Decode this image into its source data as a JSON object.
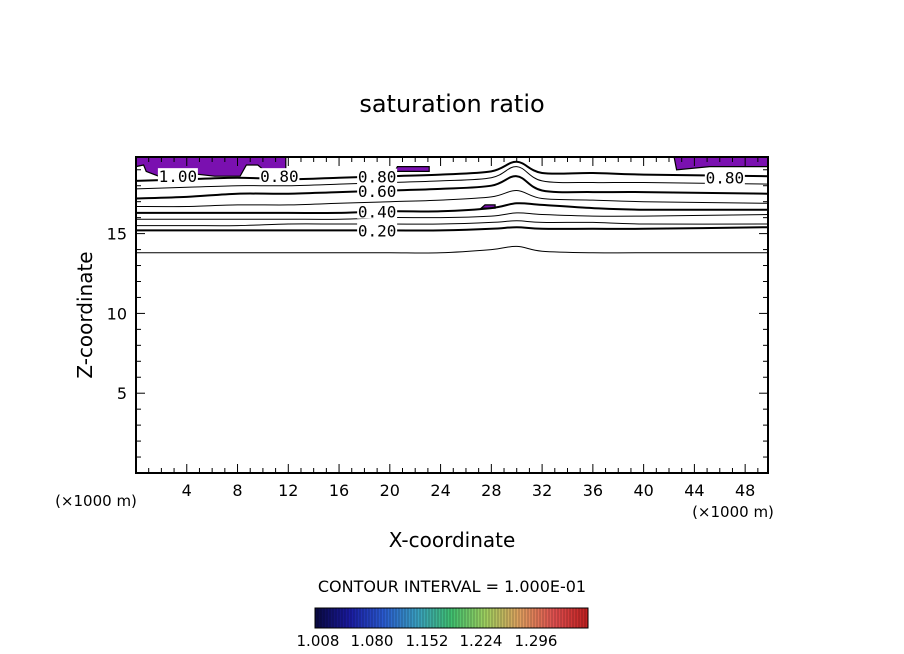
{
  "chart_data": {
    "type": "contour",
    "title": "saturation ratio",
    "xlabel": "X-coordinate",
    "ylabel": "Z-coordinate",
    "x_unit_left": "(×1000 m)",
    "x_unit_right": "(×1000 m)",
    "xlim": [
      0,
      49.8
    ],
    "ylim": [
      0,
      19.8
    ],
    "x_ticks": [
      4,
      8,
      12,
      16,
      20,
      24,
      28,
      32,
      36,
      40,
      44,
      48
    ],
    "y_ticks": [
      5,
      10,
      15
    ],
    "contour_interval_text": "CONTOUR INTERVAL = 1.000E-01",
    "colorbar_ticks": [
      "1.008",
      "1.080",
      "1.152",
      "1.224",
      "1.296"
    ],
    "colorbar_colors": [
      "#0a0a40",
      "#1a1aa0",
      "#2a5ad0",
      "#3aa0c0",
      "#40c070",
      "#a0d060",
      "#e0a060",
      "#e05050",
      "#c02020"
    ],
    "fill_color": "#7a10b0",
    "levels": [
      {
        "label": "0.20",
        "z": [
          15.2,
          15.2,
          15.2,
          15.2,
          15.2,
          15.2,
          15.2,
          15.3,
          15.4,
          15.3,
          15.3,
          15.3,
          15.4
        ]
      },
      {
        "label": "",
        "z": [
          15.5,
          15.5,
          15.5,
          15.6,
          15.6,
          15.6,
          15.6,
          15.7,
          15.8,
          15.7,
          15.7,
          15.6,
          15.6
        ]
      },
      {
        "label": "",
        "z": [
          15.9,
          15.9,
          15.9,
          15.9,
          15.9,
          16.0,
          16.0,
          16.1,
          16.3,
          16.2,
          16.1,
          16.1,
          16.2
        ]
      },
      {
        "label": "0.40",
        "z": [
          16.3,
          16.3,
          16.3,
          16.3,
          16.3,
          16.4,
          16.4,
          16.6,
          16.9,
          16.8,
          16.6,
          16.5,
          16.5
        ]
      },
      {
        "label": "",
        "z": [
          16.7,
          16.7,
          16.8,
          16.8,
          16.9,
          17.0,
          17.1,
          17.3,
          17.7,
          17.2,
          17.1,
          17.0,
          16.9
        ]
      },
      {
        "label": "0.60",
        "z": [
          17.2,
          17.3,
          17.5,
          17.5,
          17.6,
          17.7,
          17.8,
          18.0,
          18.6,
          17.7,
          17.6,
          17.6,
          17.5
        ]
      },
      {
        "label": "",
        "z": [
          17.8,
          17.9,
          18.0,
          18.0,
          18.1,
          18.2,
          18.3,
          18.5,
          19.2,
          18.3,
          18.2,
          18.2,
          18.1
        ]
      },
      {
        "label": "0.80",
        "z": [
          18.3,
          18.4,
          18.5,
          18.4,
          18.5,
          18.6,
          18.7,
          18.9,
          19.5,
          18.8,
          18.8,
          18.7,
          18.6
        ]
      }
    ],
    "level_x": [
      0,
      4,
      8,
      12,
      16,
      20,
      24,
      28,
      30,
      32,
      36,
      40,
      49.8
    ],
    "lower_line": {
      "label": "",
      "z": [
        13.8,
        13.8,
        13.8,
        13.8,
        13.8,
        13.8,
        13.8,
        14.0,
        14.2,
        13.9,
        13.8,
        13.8,
        13.8
      ]
    },
    "extra_labels": [
      {
        "text": "1.00",
        "x": 3.3,
        "z": 18.6
      },
      {
        "text": "0.80",
        "x": 11.3,
        "z": 18.6
      },
      {
        "text": "0.80",
        "x": 46.4,
        "z": 18.5
      }
    ],
    "regions_above_1": [
      {
        "name": "left-cap",
        "points": [
          [
            0,
            19.8
          ],
          [
            11.8,
            19.8
          ],
          [
            11.8,
            18.9
          ],
          [
            10.2,
            18.9
          ],
          [
            9.6,
            19.3
          ],
          [
            8.7,
            19.3
          ],
          [
            8.2,
            18.6
          ],
          [
            6.2,
            18.6
          ],
          [
            4.0,
            18.8
          ],
          [
            1.8,
            18.6
          ],
          [
            0.8,
            18.9
          ],
          [
            0.6,
            19.3
          ],
          [
            0,
            19.2
          ]
        ]
      },
      {
        "name": "small-patch",
        "points": [
          [
            20.4,
            18.9
          ],
          [
            23.1,
            18.9
          ],
          [
            23.1,
            19.2
          ],
          [
            20.6,
            19.2
          ]
        ]
      },
      {
        "name": "right-cap",
        "points": [
          [
            42.4,
            19.8
          ],
          [
            49.8,
            19.8
          ],
          [
            49.8,
            19.2
          ],
          [
            46.8,
            19.2
          ],
          [
            45.2,
            19.2
          ],
          [
            42.6,
            19.0
          ]
        ]
      },
      {
        "name": "tiny-patch",
        "points": [
          [
            27.2,
            16.6
          ],
          [
            28.3,
            16.6
          ],
          [
            28.3,
            16.8
          ],
          [
            27.5,
            16.8
          ]
        ]
      }
    ]
  }
}
